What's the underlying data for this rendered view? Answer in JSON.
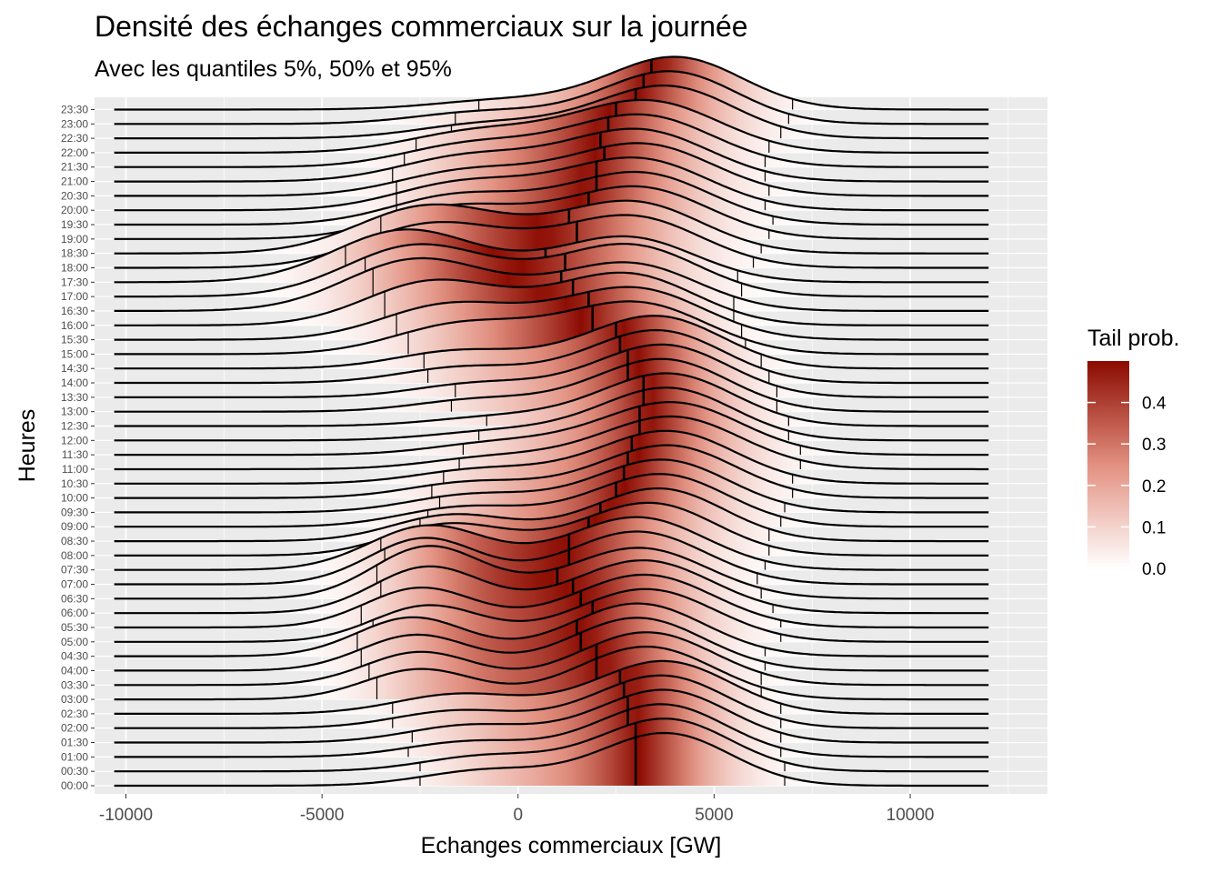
{
  "chart_data": {
    "type": "ridgeline-density",
    "title": "Densité des échanges commerciaux sur la journée",
    "subtitle": "Avec les quantiles 5%, 50% et 95%",
    "xlabel": "Echanges commerciaux [GW]",
    "ylabel": "Heures",
    "xlim": [
      -10800,
      13500
    ],
    "x_ticks": [
      "-10000",
      "-5000",
      "0",
      "5000",
      "10000"
    ],
    "x_tick_values": [
      -10000,
      -5000,
      0,
      5000,
      10000
    ],
    "grid": true,
    "legend": {
      "title": "Tail prob.",
      "position": "right",
      "labels": [
        "0.4",
        "0.3",
        "0.2",
        "0.1",
        "0.0"
      ],
      "label_values": [
        0.4,
        0.3,
        0.2,
        0.1,
        0.0
      ],
      "max": 0.5,
      "color_low": "#ffffff",
      "color_high": "#8b0a00"
    },
    "categories": [
      "00:00",
      "00:30",
      "01:00",
      "01:30",
      "02:00",
      "02:30",
      "03:00",
      "03:30",
      "04:00",
      "04:30",
      "05:00",
      "05:30",
      "06:00",
      "06:30",
      "07:00",
      "07:30",
      "08:00",
      "08:30",
      "09:00",
      "09:30",
      "10:00",
      "10:30",
      "11:00",
      "11:30",
      "12:00",
      "12:30",
      "13:00",
      "13:30",
      "14:00",
      "14:30",
      "15:00",
      "15:30",
      "16:00",
      "16:30",
      "17:00",
      "17:30",
      "18:00",
      "18:30",
      "19:00",
      "19:30",
      "20:00",
      "20:30",
      "21:00",
      "21:30",
      "22:00",
      "22:30",
      "23:00",
      "23:30"
    ],
    "quantiles": {
      "q05": [
        -2500,
        -2500,
        -2800,
        -2700,
        -3200,
        -3200,
        -3600,
        -3800,
        -4000,
        -4100,
        -3700,
        -4000,
        -3500,
        -3600,
        -3400,
        -3500,
        -2900,
        -2500,
        -2300,
        -2000,
        -2200,
        -1900,
        -1500,
        -1400,
        -1000,
        -800,
        -1700,
        -1600,
        -2300,
        -2400,
        -2800,
        -3100,
        -3400,
        -3700,
        -3900,
        -4400,
        -3400,
        -3500,
        -3100,
        -3100,
        -3100,
        -3100,
        -3200,
        -2900,
        -2600,
        -1700,
        -1600,
        -1000
      ],
      "q50": [
        3000,
        3000,
        2800,
        2800,
        2700,
        2600,
        2000,
        2000,
        1600,
        1500,
        1900,
        1600,
        1400,
        1000,
        1300,
        1300,
        1800,
        2100,
        2500,
        2700,
        2800,
        2900,
        3100,
        3100,
        3200,
        3200,
        2800,
        2800,
        2600,
        2500,
        1900,
        1800,
        1400,
        1100,
        1200,
        700,
        1500,
        1300,
        1800,
        2000,
        2000,
        2200,
        2100,
        2300,
        2500,
        3000,
        3200,
        3400
      ],
      "q95": [
        6800,
        6800,
        6700,
        6700,
        6700,
        6700,
        6200,
        6200,
        6300,
        6300,
        6700,
        6700,
        6500,
        6200,
        6100,
        6300,
        6400,
        6400,
        6700,
        6800,
        7000,
        7000,
        7200,
        7200,
        6900,
        6900,
        6600,
        6600,
        6400,
        6200,
        5800,
        5700,
        5500,
        5500,
        5700,
        5600,
        6000,
        6200,
        6400,
        6500,
        6300,
        6400,
        6300,
        6300,
        6400,
        6700,
        6900,
        7000
      ]
    },
    "density_model": {
      "x_range": [
        -10300,
        12000
      ],
      "center_a": [
        3400,
        3400,
        3300,
        3300,
        3200,
        3200,
        3000,
        3000,
        2800,
        2800,
        2900,
        2800,
        2800,
        2700,
        2700,
        2700,
        2800,
        3000,
        3200,
        3300,
        3400,
        3400,
        3500,
        3500,
        3500,
        3500,
        3300,
        3300,
        3100,
        3000,
        2400,
        2300,
        2100,
        2000,
        2100,
        2000,
        2200,
        2200,
        2500,
        2600,
        2500,
        2700,
        2600,
        2700,
        2800,
        3300,
        3500,
        3700
      ],
      "width_a": [
        1700,
        1700,
        1700,
        1700,
        1700,
        1700,
        1800,
        1800,
        1800,
        1800,
        1900,
        1900,
        1900,
        2000,
        1900,
        1900,
        1900,
        1900,
        1900,
        1900,
        1900,
        1900,
        2000,
        2000,
        1800,
        1800,
        1800,
        1800,
        1800,
        1800,
        1900,
        1900,
        1900,
        2000,
        2000,
        2000,
        2000,
        2000,
        2000,
        2000,
        2000,
        2000,
        2000,
        2000,
        2000,
        1900,
        1800,
        1800
      ],
      "center_b": [
        -800,
        -800,
        -1200,
        -1200,
        -1500,
        -1500,
        -2500,
        -2500,
        -2600,
        -2700,
        -2300,
        -2500,
        -2300,
        -2300,
        -2400,
        -2300,
        -1800,
        -1700,
        -1400,
        -1200,
        -1200,
        -1000,
        -800,
        -700,
        -500,
        -500,
        -1000,
        -1000,
        -1400,
        -1500,
        -1500,
        -1800,
        -2200,
        -2600,
        -2600,
        -2900,
        -2200,
        -2300,
        -1700,
        -1600,
        -1500,
        -1400,
        -1400,
        -1300,
        -1200,
        -900,
        -900,
        -500
      ],
      "width_b": [
        1600,
        1600,
        1600,
        1600,
        1600,
        1600,
        1400,
        1400,
        1400,
        1400,
        1400,
        1400,
        1400,
        1400,
        1400,
        1500,
        1500,
        1500,
        1600,
        1600,
        1600,
        1600,
        1600,
        1600,
        1700,
        1700,
        1600,
        1600,
        1600,
        1600,
        1700,
        1700,
        1700,
        1800,
        1800,
        1800,
        1800,
        1800,
        1700,
        1700,
        1700,
        1700,
        1700,
        1700,
        1700,
        1700,
        1700,
        1700
      ],
      "weight_b": [
        0.22,
        0.22,
        0.22,
        0.24,
        0.24,
        0.26,
        0.36,
        0.38,
        0.4,
        0.42,
        0.4,
        0.42,
        0.46,
        0.5,
        0.46,
        0.45,
        0.36,
        0.32,
        0.26,
        0.24,
        0.22,
        0.2,
        0.16,
        0.16,
        0.14,
        0.14,
        0.18,
        0.2,
        0.22,
        0.24,
        0.34,
        0.38,
        0.44,
        0.5,
        0.48,
        0.52,
        0.44,
        0.46,
        0.36,
        0.34,
        0.32,
        0.3,
        0.3,
        0.28,
        0.26,
        0.2,
        0.18,
        0.14
      ],
      "center_c": [
        4200,
        4200,
        4100,
        4200,
        4200,
        4300,
        3600,
        3600,
        3300,
        3300,
        3600,
        3600,
        3500,
        3300,
        3300,
        3300,
        3700,
        3900,
        4000,
        4000,
        4200,
        4200,
        4300,
        4300,
        4200,
        4200,
        4100,
        4100,
        4000,
        4000,
        3600,
        3500,
        3200,
        3200,
        3200,
        3100,
        3300,
        3300,
        3500,
        3500,
        3500,
        3600,
        3500,
        3600,
        3800,
        4200,
        4300,
        4400
      ],
      "width_c": [
        1500,
        1500,
        1500,
        1500,
        1500,
        1500,
        1600,
        1600,
        1600,
        1600,
        1600,
        1600,
        1600,
        1600,
        1600,
        1600,
        1500,
        1500,
        1500,
        1500,
        1500,
        1500,
        1500,
        1500,
        1500,
        1500,
        1500,
        1500,
        1500,
        1500,
        1600,
        1600,
        1600,
        1600,
        1600,
        1600,
        1600,
        1600,
        1600,
        1600,
        1600,
        1600,
        1600,
        1600,
        1600,
        1500,
        1500,
        1500
      ],
      "weight_c": [
        0.3,
        0.3,
        0.3,
        0.3,
        0.3,
        0.3,
        0.25,
        0.25,
        0.25,
        0.25,
        0.25,
        0.25,
        0.25,
        0.25,
        0.25,
        0.25,
        0.3,
        0.35,
        0.3,
        0.3,
        0.3,
        0.3,
        0.3,
        0.3,
        0.3,
        0.3,
        0.3,
        0.3,
        0.3,
        0.3,
        0.25,
        0.25,
        0.25,
        0.25,
        0.25,
        0.25,
        0.25,
        0.25,
        0.25,
        0.25,
        0.25,
        0.25,
        0.25,
        0.25,
        0.25,
        0.3,
        0.3,
        0.3
      ]
    }
  }
}
